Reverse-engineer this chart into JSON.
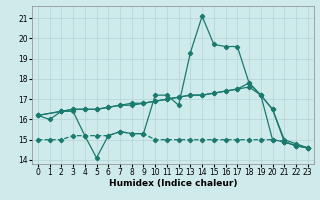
{
  "xlabel": "Humidex (Indice chaleur)",
  "background_color": "#ceeaeb",
  "line_color": "#1a7a6e",
  "grid_color": "#b8d8d8",
  "xlim": [
    -0.5,
    23.5
  ],
  "ylim": [
    13.8,
    21.6
  ],
  "yticks": [
    14,
    15,
    16,
    17,
    18,
    19,
    20,
    21
  ],
  "xticks": [
    0,
    1,
    2,
    3,
    4,
    5,
    6,
    7,
    8,
    9,
    10,
    11,
    12,
    13,
    14,
    15,
    16,
    17,
    18,
    19,
    20,
    21,
    22,
    23
  ],
  "series1_x": [
    0,
    1,
    2,
    3,
    4,
    5,
    6,
    7,
    8,
    9,
    10,
    11,
    12,
    13,
    14,
    15,
    16,
    17,
    18,
    19,
    20,
    21,
    22,
    23
  ],
  "series1_y": [
    16.2,
    16.0,
    16.4,
    16.4,
    15.2,
    14.1,
    15.2,
    15.4,
    15.3,
    15.3,
    17.2,
    17.2,
    16.7,
    19.3,
    21.1,
    19.7,
    19.6,
    19.6,
    17.8,
    17.2,
    16.5,
    14.9,
    14.7,
    14.6
  ],
  "series2_x": [
    0,
    2,
    3,
    4,
    5,
    6,
    7,
    8,
    9,
    10,
    11,
    12,
    13,
    14,
    15,
    16,
    17,
    18,
    19,
    20,
    21,
    22,
    23
  ],
  "series2_y": [
    16.2,
    16.4,
    16.5,
    16.5,
    16.5,
    16.6,
    16.7,
    16.8,
    16.8,
    16.9,
    17.0,
    17.1,
    17.2,
    17.2,
    17.3,
    17.4,
    17.5,
    17.8,
    17.2,
    16.5,
    15.0,
    14.8,
    14.6
  ],
  "series3_x": [
    0,
    2,
    3,
    4,
    5,
    6,
    7,
    8,
    9,
    10,
    11,
    12,
    13,
    14,
    15,
    16,
    17,
    18,
    19,
    20,
    21,
    22,
    23
  ],
  "series3_y": [
    16.2,
    16.4,
    16.5,
    16.5,
    16.5,
    16.6,
    16.7,
    16.7,
    16.8,
    16.9,
    17.0,
    17.1,
    17.2,
    17.2,
    17.3,
    17.4,
    17.5,
    17.6,
    17.2,
    15.0,
    14.9,
    14.7,
    14.6
  ],
  "series4_x": [
    0,
    1,
    2,
    3,
    4,
    5,
    6,
    7,
    8,
    9,
    10,
    11,
    12,
    13,
    14,
    15,
    16,
    17,
    18,
    19,
    20,
    21,
    22,
    23
  ],
  "series4_y": [
    15.0,
    15.0,
    15.0,
    15.2,
    15.2,
    15.2,
    15.2,
    15.4,
    15.3,
    15.3,
    15.0,
    15.0,
    15.0,
    15.0,
    15.0,
    15.0,
    15.0,
    15.0,
    15.0,
    15.0,
    15.0,
    14.9,
    14.7,
    14.6
  ]
}
